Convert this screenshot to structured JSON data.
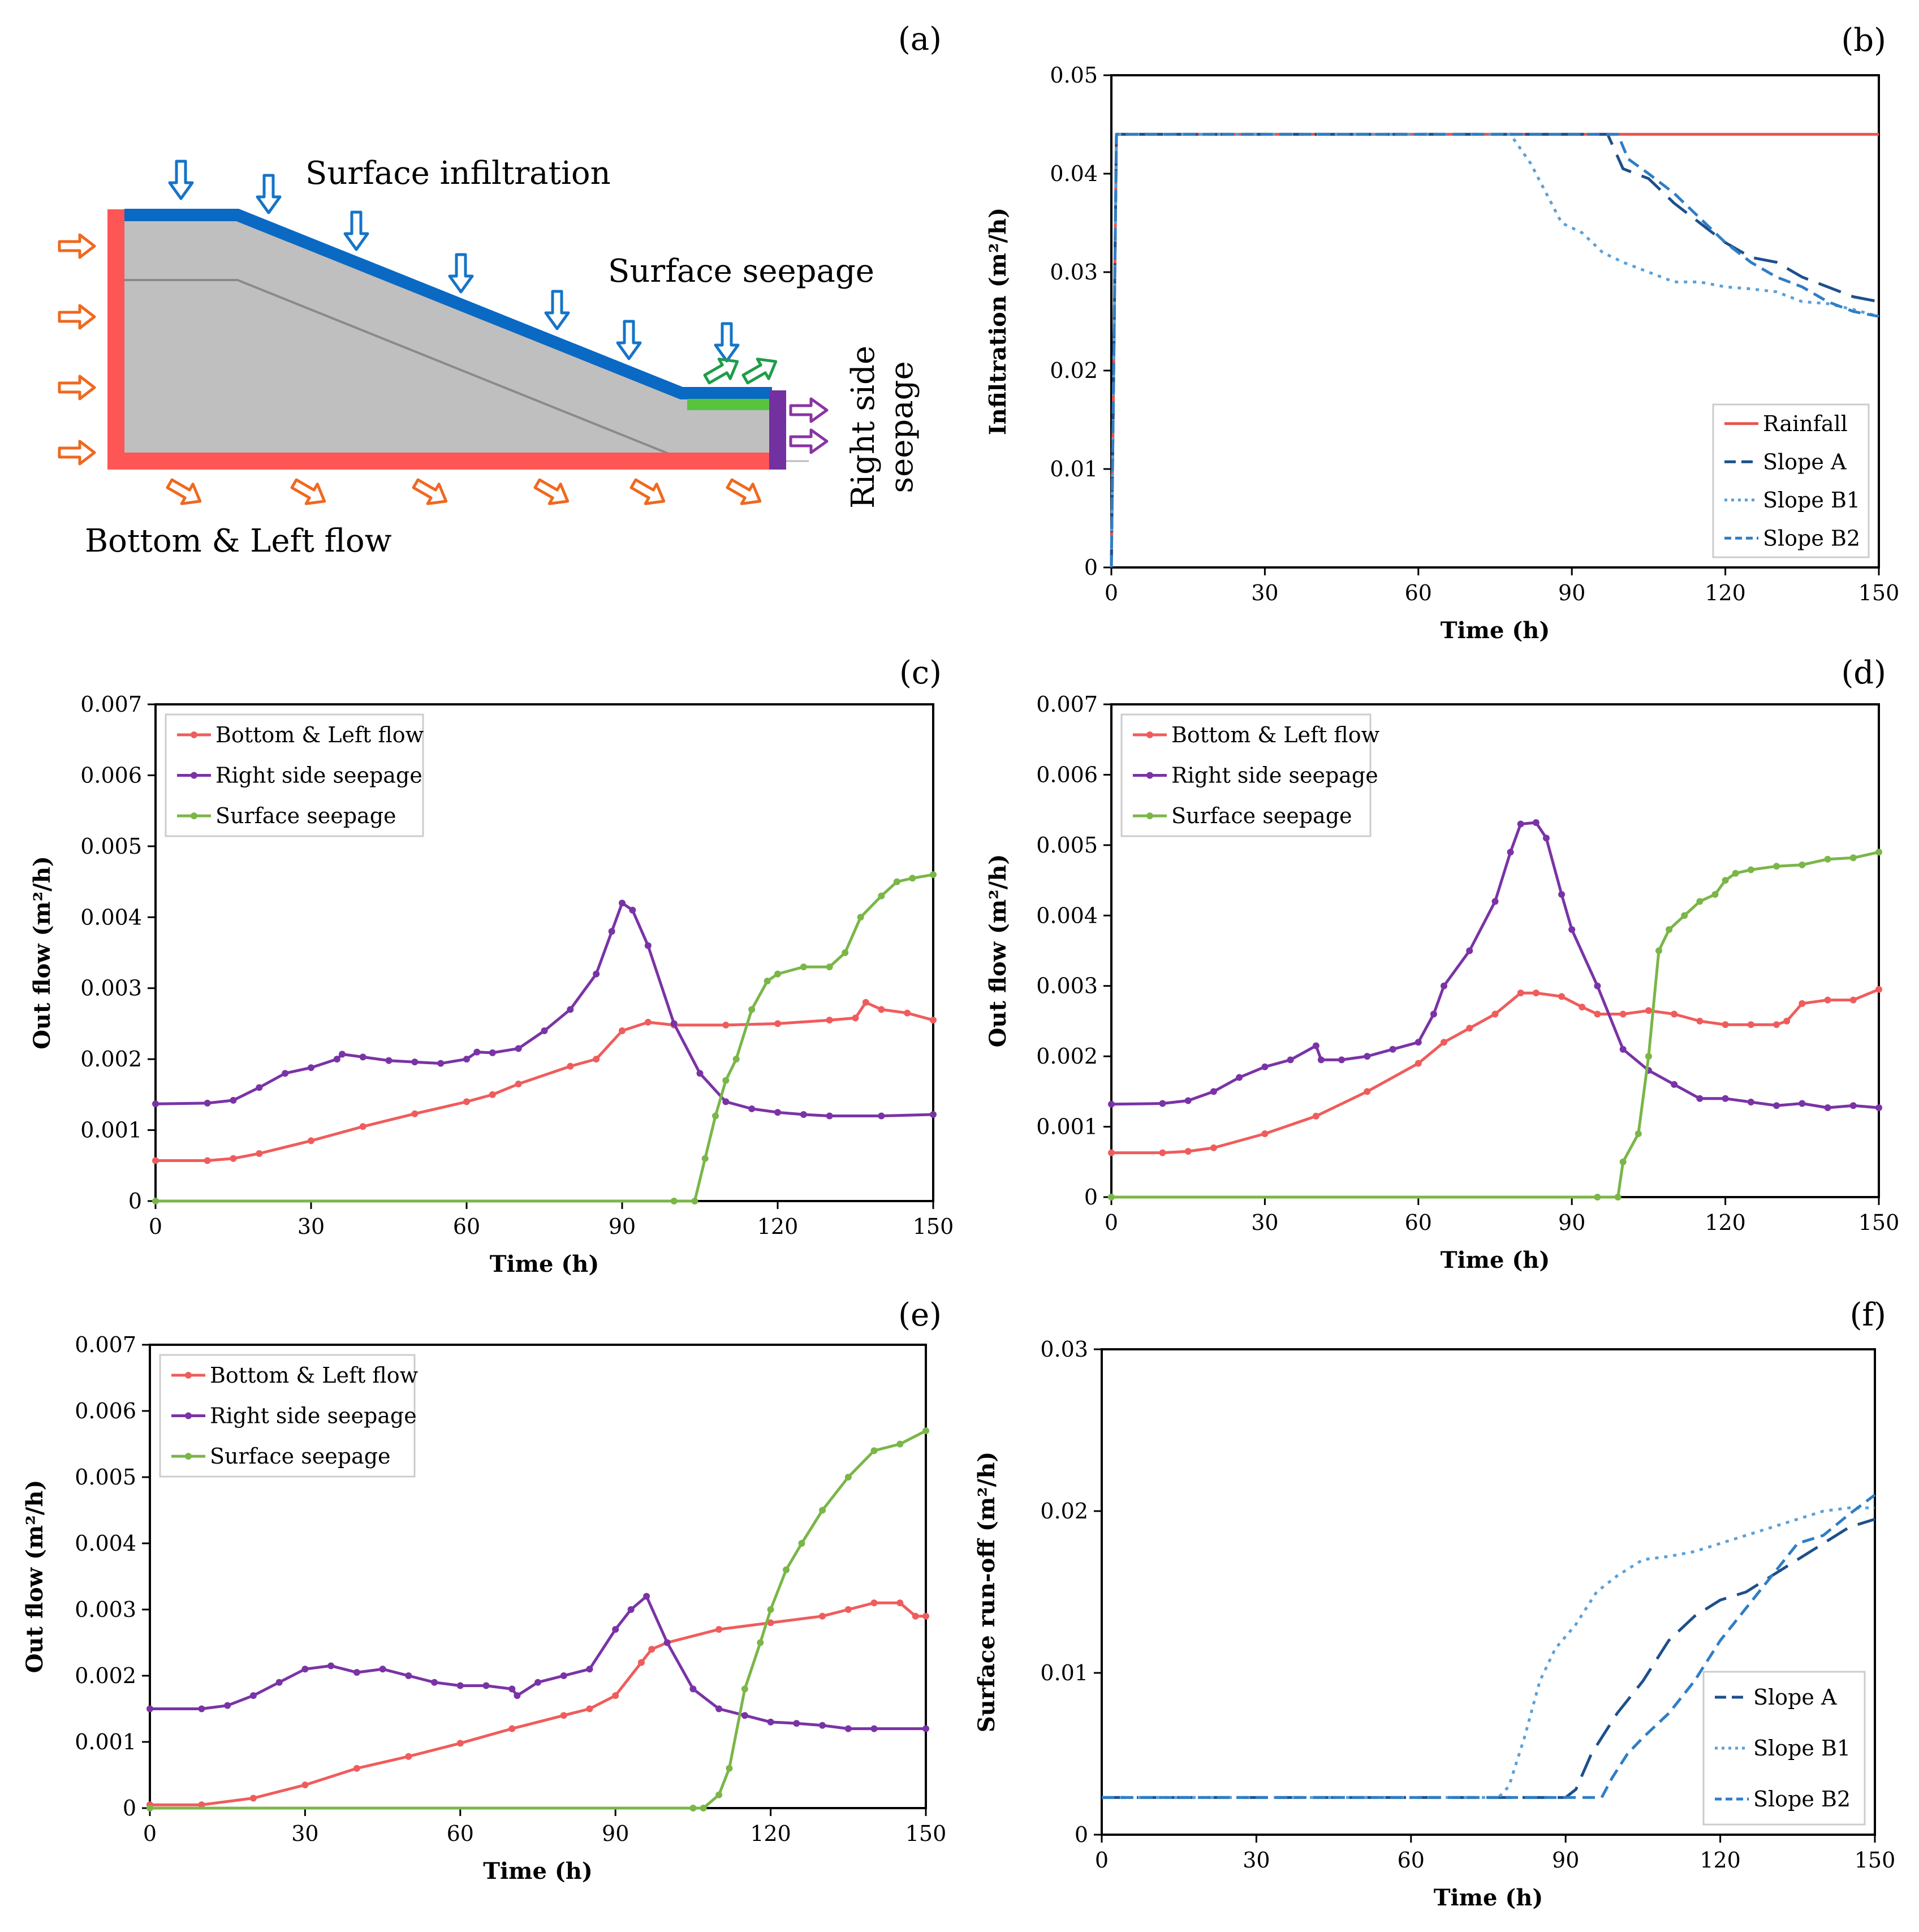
{
  "panels": [
    {
      "id": "a",
      "label": "(a)",
      "texts": {
        "surface_infiltration": "Surface infiltration",
        "surface_seepage": "Surface seepage",
        "right_side_l1": "Right side",
        "right_side_l2": "seepage",
        "bottom_left": "Bottom & Left flow"
      },
      "colors": {
        "body": "#bfbfbf",
        "left_bottom_boundary": "#fe5555",
        "surface_boundary": "#0a69c3",
        "seepage_face": "#58c43d",
        "right_boundary": "#7330a0",
        "orange_arrow": "#f0681f",
        "blue_arrow": "#1574c8",
        "green_arrow": "#1f9c48",
        "purple_arrow": "#8a33a3"
      }
    }
  ],
  "chart_data": [
    {
      "panel": "b",
      "label": "(b)",
      "type": "line",
      "xlabel": "Time (h)",
      "ylabel": "Infiltration (m²/h)",
      "xlim": [
        0,
        150
      ],
      "ylim": [
        0,
        0.05
      ],
      "xticks": [
        0,
        30,
        60,
        90,
        120,
        150
      ],
      "xtick_labels": [
        "0",
        "30",
        "60",
        "90",
        "120",
        "150"
      ],
      "yticks": [
        0,
        0.01,
        0.02,
        0.03,
        0.04,
        0.05
      ],
      "ytick_labels": [
        "0",
        "0.01",
        "0.02",
        "0.03",
        "0.04",
        "0.05"
      ],
      "legend": "bottom-right",
      "series": [
        {
          "name": "Rainfall",
          "color": "#e8554f",
          "style": "solid",
          "marker": "none",
          "x": [
            0,
            1,
            150
          ],
          "y": [
            0,
            0.044,
            0.044
          ]
        },
        {
          "name": "Slope A",
          "color": "#1d4f8c",
          "style": "dash",
          "marker": "none",
          "x": [
            0,
            1,
            97,
            100,
            105,
            110,
            115,
            120,
            125,
            130,
            135,
            140,
            145,
            150
          ],
          "y": [
            0,
            0.044,
            0.044,
            0.0405,
            0.0395,
            0.037,
            0.035,
            0.033,
            0.0315,
            0.031,
            0.0295,
            0.0285,
            0.0275,
            0.027
          ]
        },
        {
          "name": "Slope B1",
          "color": "#5aa0d8",
          "style": "dot",
          "marker": "none",
          "x": [
            0,
            1,
            78,
            82,
            85,
            88,
            92,
            96,
            100,
            105,
            110,
            115,
            120,
            125,
            130,
            135,
            140,
            145,
            150
          ],
          "y": [
            0,
            0.044,
            0.044,
            0.041,
            0.038,
            0.035,
            0.034,
            0.032,
            0.031,
            0.03,
            0.029,
            0.029,
            0.0285,
            0.0283,
            0.028,
            0.027,
            0.0268,
            0.0262,
            0.0255
          ]
        },
        {
          "name": "Slope B2",
          "color": "#2e7ec6",
          "style": "dash2",
          "marker": "none",
          "x": [
            0,
            1,
            99,
            101,
            105,
            110,
            115,
            120,
            125,
            130,
            135,
            140,
            145,
            150
          ],
          "y": [
            0,
            0.044,
            0.044,
            0.0415,
            0.04,
            0.038,
            0.0355,
            0.033,
            0.031,
            0.0295,
            0.0285,
            0.027,
            0.026,
            0.0255
          ]
        }
      ]
    },
    {
      "panel": "c",
      "label": "(c)",
      "type": "line",
      "xlabel": "Time (h)",
      "ylabel": "Out flow (m²/h)",
      "xlim": [
        0,
        150
      ],
      "ylim": [
        0,
        0.007
      ],
      "xticks": [
        0,
        30,
        60,
        90,
        120,
        150
      ],
      "xtick_labels": [
        "0",
        "30",
        "60",
        "90",
        "120",
        "150"
      ],
      "yticks": [
        0,
        0.001,
        0.002,
        0.003,
        0.004,
        0.005,
        0.006,
        0.007
      ],
      "ytick_labels": [
        "0",
        "0.001",
        "0.002",
        "0.003",
        "0.004",
        "0.005",
        "0.006",
        "0.007"
      ],
      "legend": "top-left",
      "series": [
        {
          "name": "Bottom & Left flow",
          "color": "#f05c5c",
          "style": "solid",
          "marker": "dot",
          "x": [
            0,
            10,
            15,
            20,
            30,
            40,
            50,
            60,
            65,
            70,
            80,
            85,
            90,
            95,
            100,
            110,
            120,
            130,
            135,
            137,
            140,
            145,
            150
          ],
          "y": [
            0.00057,
            0.00057,
            0.0006,
            0.00067,
            0.00085,
            0.00105,
            0.00123,
            0.0014,
            0.0015,
            0.00165,
            0.0019,
            0.002,
            0.0024,
            0.00252,
            0.00248,
            0.00248,
            0.0025,
            0.00255,
            0.00258,
            0.0028,
            0.0027,
            0.00265,
            0.00255
          ]
        },
        {
          "name": "Right side seepage",
          "color": "#7a33a6",
          "style": "solid",
          "marker": "dot",
          "x": [
            0,
            10,
            15,
            20,
            25,
            30,
            35,
            36,
            40,
            45,
            50,
            55,
            60,
            62,
            65,
            70,
            75,
            80,
            85,
            88,
            90,
            92,
            95,
            100,
            105,
            110,
            115,
            120,
            125,
            130,
            140,
            150
          ],
          "y": [
            0.00137,
            0.00138,
            0.00142,
            0.0016,
            0.0018,
            0.00188,
            0.002,
            0.00207,
            0.00203,
            0.00198,
            0.00196,
            0.00194,
            0.002,
            0.0021,
            0.00209,
            0.00215,
            0.0024,
            0.0027,
            0.0032,
            0.0038,
            0.0042,
            0.0041,
            0.0036,
            0.0025,
            0.0018,
            0.0014,
            0.0013,
            0.00125,
            0.00122,
            0.0012,
            0.0012,
            0.00122
          ]
        },
        {
          "name": "Surface seepage",
          "color": "#7ab648",
          "style": "solid",
          "marker": "dot",
          "x": [
            0,
            100,
            104,
            106,
            108,
            110,
            112,
            115,
            118,
            120,
            125,
            130,
            133,
            136,
            140,
            143,
            146,
            150
          ],
          "y": [
            0,
            0,
            0,
            0.0006,
            0.0012,
            0.0017,
            0.002,
            0.0027,
            0.0031,
            0.0032,
            0.0033,
            0.0033,
            0.0035,
            0.004,
            0.0043,
            0.0045,
            0.00455,
            0.0046
          ]
        }
      ]
    },
    {
      "panel": "d",
      "label": "(d)",
      "type": "line",
      "xlabel": "Time (h)",
      "ylabel": "Out flow (m²/h)",
      "xlim": [
        0,
        150
      ],
      "ylim": [
        0,
        0.007
      ],
      "xticks": [
        0,
        30,
        60,
        90,
        120,
        150
      ],
      "xtick_labels": [
        "0",
        "30",
        "60",
        "90",
        "120",
        "150"
      ],
      "yticks": [
        0,
        0.001,
        0.002,
        0.003,
        0.004,
        0.005,
        0.006,
        0.007
      ],
      "ytick_labels": [
        "0",
        "0.001",
        "0.002",
        "0.003",
        "0.004",
        "0.005",
        "0.006",
        "0.007"
      ],
      "legend": "top-left",
      "series": [
        {
          "name": "Bottom & Left flow",
          "color": "#f05c5c",
          "style": "solid",
          "marker": "dot",
          "x": [
            0,
            10,
            15,
            20,
            30,
            40,
            50,
            60,
            65,
            70,
            75,
            80,
            83,
            88,
            92,
            95,
            100,
            105,
            110,
            115,
            120,
            125,
            130,
            132,
            135,
            140,
            145,
            150
          ],
          "y": [
            0.00063,
            0.00063,
            0.00065,
            0.0007,
            0.0009,
            0.00115,
            0.0015,
            0.0019,
            0.0022,
            0.0024,
            0.0026,
            0.0029,
            0.0029,
            0.00285,
            0.0027,
            0.0026,
            0.0026,
            0.00265,
            0.0026,
            0.0025,
            0.00245,
            0.00245,
            0.00245,
            0.0025,
            0.00275,
            0.0028,
            0.0028,
            0.00295
          ]
        },
        {
          "name": "Right side seepage",
          "color": "#7a33a6",
          "style": "solid",
          "marker": "dot",
          "x": [
            0,
            10,
            15,
            20,
            25,
            30,
            35,
            40,
            41,
            45,
            50,
            55,
            60,
            63,
            65,
            70,
            75,
            78,
            80,
            83,
            85,
            88,
            90,
            95,
            100,
            105,
            110,
            115,
            120,
            125,
            130,
            135,
            140,
            145,
            150
          ],
          "y": [
            0.00132,
            0.00133,
            0.00137,
            0.0015,
            0.0017,
            0.00185,
            0.00195,
            0.00215,
            0.00195,
            0.00195,
            0.002,
            0.0021,
            0.0022,
            0.0026,
            0.003,
            0.0035,
            0.0042,
            0.0049,
            0.0053,
            0.00532,
            0.0051,
            0.0043,
            0.0038,
            0.003,
            0.0021,
            0.0018,
            0.0016,
            0.0014,
            0.0014,
            0.00135,
            0.0013,
            0.00133,
            0.00127,
            0.0013,
            0.00127
          ]
        },
        {
          "name": "Surface seepage",
          "color": "#7ab648",
          "style": "solid",
          "marker": "dot",
          "x": [
            0,
            95,
            99,
            100,
            103,
            105,
            107,
            109,
            112,
            115,
            118,
            120,
            122,
            125,
            130,
            135,
            140,
            145,
            150
          ],
          "y": [
            0,
            0,
            0,
            0.0005,
            0.0009,
            0.002,
            0.0035,
            0.0038,
            0.004,
            0.0042,
            0.0043,
            0.0045,
            0.0046,
            0.00465,
            0.0047,
            0.00472,
            0.0048,
            0.00482,
            0.0049
          ]
        }
      ]
    },
    {
      "panel": "e",
      "label": "(e)",
      "type": "line",
      "xlabel": "Time (h)",
      "ylabel": "Out flow (m²/h)",
      "xlim": [
        0,
        150
      ],
      "ylim": [
        0,
        0.007
      ],
      "xticks": [
        0,
        30,
        60,
        90,
        120,
        150
      ],
      "xtick_labels": [
        "0",
        "30",
        "60",
        "90",
        "120",
        "150"
      ],
      "yticks": [
        0,
        0.001,
        0.002,
        0.003,
        0.004,
        0.005,
        0.006,
        0.007
      ],
      "ytick_labels": [
        "0",
        "0.001",
        "0.002",
        "0.003",
        "0.004",
        "0.005",
        "0.006",
        "0.007"
      ],
      "legend": "top-left",
      "series": [
        {
          "name": "Bottom & Left flow",
          "color": "#f05c5c",
          "style": "solid",
          "marker": "dot",
          "x": [
            0,
            10,
            20,
            30,
            40,
            50,
            60,
            70,
            80,
            85,
            90,
            95,
            97,
            100,
            110,
            120,
            130,
            135,
            140,
            145,
            148,
            150
          ],
          "y": [
            5e-05,
            5e-05,
            0.00015,
            0.00035,
            0.0006,
            0.00078,
            0.00098,
            0.0012,
            0.0014,
            0.0015,
            0.0017,
            0.0022,
            0.0024,
            0.0025,
            0.0027,
            0.0028,
            0.0029,
            0.003,
            0.0031,
            0.0031,
            0.0029,
            0.0029
          ]
        },
        {
          "name": "Right side seepage",
          "color": "#7a33a6",
          "style": "solid",
          "marker": "dot",
          "x": [
            0,
            10,
            15,
            20,
            25,
            30,
            35,
            40,
            45,
            50,
            55,
            60,
            65,
            70,
            71,
            75,
            80,
            85,
            90,
            93,
            96,
            100,
            105,
            110,
            115,
            120,
            125,
            130,
            135,
            140,
            150
          ],
          "y": [
            0.0015,
            0.0015,
            0.00155,
            0.0017,
            0.0019,
            0.0021,
            0.00215,
            0.00205,
            0.0021,
            0.002,
            0.0019,
            0.00185,
            0.00185,
            0.0018,
            0.0017,
            0.0019,
            0.002,
            0.0021,
            0.0027,
            0.003,
            0.0032,
            0.0025,
            0.0018,
            0.0015,
            0.0014,
            0.0013,
            0.00128,
            0.00125,
            0.0012,
            0.0012,
            0.0012
          ]
        },
        {
          "name": "Surface seepage",
          "color": "#7ab648",
          "style": "solid",
          "marker": "dot",
          "x": [
            0,
            105,
            107,
            110,
            112,
            115,
            118,
            120,
            123,
            126,
            130,
            135,
            140,
            145,
            150
          ],
          "y": [
            0,
            0,
            0,
            0.0002,
            0.0006,
            0.0018,
            0.0025,
            0.003,
            0.0036,
            0.004,
            0.0045,
            0.005,
            0.0054,
            0.0055,
            0.0057
          ]
        }
      ]
    },
    {
      "panel": "f",
      "label": "(f)",
      "type": "line",
      "xlabel": "Time (h)",
      "ylabel": "Surface run-off (m²/h)",
      "xlim": [
        0,
        150
      ],
      "ylim": [
        0,
        0.03
      ],
      "xticks": [
        0,
        30,
        60,
        90,
        120,
        150
      ],
      "xtick_labels": [
        "0",
        "30",
        "60",
        "90",
        "120",
        "150"
      ],
      "yticks": [
        0,
        0.01,
        0.02,
        0.03
      ],
      "ytick_labels": [
        "0",
        "0.01",
        "0.02",
        "0.03"
      ],
      "legend": "bottom-right",
      "series": [
        {
          "name": "Slope A",
          "color": "#1d4f8c",
          "style": "dash",
          "marker": "none",
          "x": [
            0,
            90,
            92,
            95,
            100,
            105,
            110,
            115,
            120,
            125,
            130,
            135,
            140,
            145,
            150
          ],
          "y": [
            0.0023,
            0.0023,
            0.0028,
            0.005,
            0.0075,
            0.0095,
            0.012,
            0.0135,
            0.0145,
            0.015,
            0.016,
            0.017,
            0.018,
            0.019,
            0.0195
          ]
        },
        {
          "name": "Slope B1",
          "color": "#5aa0d8",
          "style": "dot",
          "marker": "none",
          "x": [
            0,
            77,
            79,
            82,
            85,
            88,
            92,
            96,
            100,
            105,
            110,
            115,
            120,
            125,
            130,
            135,
            140,
            145,
            150
          ],
          "y": [
            0.0023,
            0.0023,
            0.003,
            0.006,
            0.0095,
            0.0115,
            0.013,
            0.015,
            0.016,
            0.017,
            0.0172,
            0.0175,
            0.018,
            0.0185,
            0.019,
            0.0195,
            0.02,
            0.0202,
            0.0202
          ]
        },
        {
          "name": "Slope B2",
          "color": "#2e7ec6",
          "style": "dash2",
          "marker": "none",
          "x": [
            0,
            97,
            99,
            102,
            105,
            110,
            115,
            120,
            125,
            130,
            135,
            140,
            145,
            150
          ],
          "y": [
            0.0023,
            0.0023,
            0.0035,
            0.005,
            0.006,
            0.0075,
            0.0095,
            0.012,
            0.014,
            0.016,
            0.018,
            0.0185,
            0.0198,
            0.021
          ]
        }
      ]
    }
  ]
}
